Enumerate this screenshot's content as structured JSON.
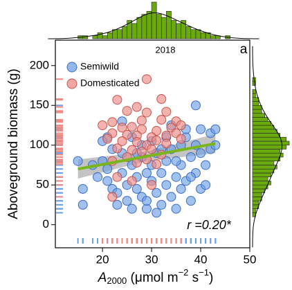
{
  "chart_data": {
    "type": "scatter",
    "panel_title": "2018",
    "panel_letter": "a",
    "y_label": "Aboveground biomass (g)",
    "x_label": {
      "symbol": "A",
      "subscript": "2000",
      "unit_1": " (μmol m",
      "exp_1": "−2",
      "unit_2": " s",
      "exp_2": "−1",
      "unit_3": ")"
    },
    "annotation": "r =0.20*",
    "xlim": [
      10.4,
      50
    ],
    "ylim": [
      -29,
      232
    ],
    "xticks": [
      20,
      30,
      40,
      50
    ],
    "yticks": [
      0,
      50,
      100,
      150,
      200
    ],
    "legend": "top-left",
    "series": [
      {
        "name": "Semiwild",
        "color": "#6f9fe6",
        "x": [
          16,
          16,
          15,
          18,
          19,
          20,
          21,
          21,
          22,
          23,
          23,
          24,
          24,
          25,
          25,
          26,
          26,
          27,
          27,
          28,
          28,
          29,
          29,
          30,
          30,
          31,
          31,
          32,
          32,
          33,
          33,
          34,
          34,
          35,
          35,
          36,
          36,
          37,
          37,
          38,
          38,
          39,
          39,
          40,
          40,
          41,
          41,
          42,
          42,
          43,
          43,
          39,
          37,
          36,
          34,
          33,
          30,
          28,
          24,
          21,
          20,
          22,
          26,
          35,
          38,
          40,
          27,
          32,
          29,
          31
        ],
        "values": [
          45,
          25,
          80,
          75,
          60,
          80,
          55,
          70,
          45,
          40,
          25,
          65,
          90,
          30,
          50,
          75,
          20,
          60,
          45,
          85,
          35,
          65,
          20,
          75,
          55,
          40,
          90,
          25,
          65,
          80,
          50,
          35,
          95,
          60,
          20,
          75,
          45,
          110,
          55,
          85,
          30,
          100,
          65,
          45,
          120,
          75,
          50,
          95,
          115,
          100,
          120,
          150,
          120,
          100,
          125,
          110,
          105,
          100,
          130,
          110,
          105,
          95,
          110,
          80,
          60,
          90,
          90,
          95,
          30,
          15
        ]
      },
      {
        "name": "Domesticated",
        "color": "#f08a84",
        "x": [
          29,
          23,
          32,
          27,
          25,
          33,
          29,
          22,
          28,
          32,
          35,
          20,
          24,
          26,
          28,
          31,
          34,
          36,
          22,
          25,
          27,
          30,
          33,
          35,
          21,
          24,
          27,
          29,
          31,
          33,
          36,
          23,
          26,
          28,
          30,
          32,
          25,
          29,
          22,
          27,
          31,
          23,
          26,
          30,
          22
        ],
        "values": [
          183,
          157,
          158,
          148,
          143,
          142,
          141,
          129,
          131,
          132,
          130,
          125,
          122,
          123,
          120,
          118,
          122,
          125,
          115,
          113,
          112,
          110,
          112,
          115,
          108,
          105,
          104,
          100,
          106,
          102,
          108,
          96,
          94,
          92,
          95,
          88,
          85,
          82,
          80,
          78,
          76,
          60,
          55,
          50,
          35
        ]
      }
    ],
    "fit": {
      "color": "#7ab51d",
      "x": [
        15,
        43
      ],
      "y": [
        70,
        102
      ]
    },
    "band": {
      "color": "#b0b0b0",
      "x": [
        15,
        29,
        43
      ],
      "lower": [
        58,
        80,
        90
      ],
      "upper": [
        82,
        92,
        114
      ]
    },
    "x_hist": {
      "color": "#6aaa0e",
      "bins": [
        15,
        16,
        17,
        18,
        19,
        20,
        21,
        22,
        23,
        24,
        25,
        26,
        27,
        28,
        29,
        30,
        31,
        32,
        33,
        34,
        35,
        36,
        37,
        38,
        39,
        40,
        41,
        42,
        43,
        44,
        45,
        46
      ],
      "counts": [
        1,
        1,
        0,
        1,
        2,
        1,
        2,
        3,
        3,
        4,
        6,
        5,
        7,
        8,
        9,
        12,
        8,
        7,
        9,
        6,
        5,
        6,
        4,
        3,
        3,
        2,
        2,
        1,
        1,
        0,
        1
      ]
    },
    "y_hist": {
      "color": "#6aaa0e",
      "bins": [
        10,
        15,
        20,
        25,
        30,
        35,
        40,
        45,
        50,
        55,
        60,
        65,
        70,
        75,
        80,
        85,
        90,
        95,
        100,
        105,
        110,
        115,
        120,
        125,
        130,
        135,
        140,
        145,
        150,
        155,
        160,
        165,
        170,
        175,
        180,
        185
      ],
      "counts": [
        1,
        1,
        2,
        2,
        3,
        3,
        4,
        5,
        6,
        5,
        6,
        7,
        8,
        7,
        9,
        10,
        9,
        11,
        12,
        11,
        9,
        8,
        7,
        6,
        5,
        4,
        3,
        3,
        2,
        2,
        1,
        1,
        0,
        1,
        1
      ]
    }
  }
}
